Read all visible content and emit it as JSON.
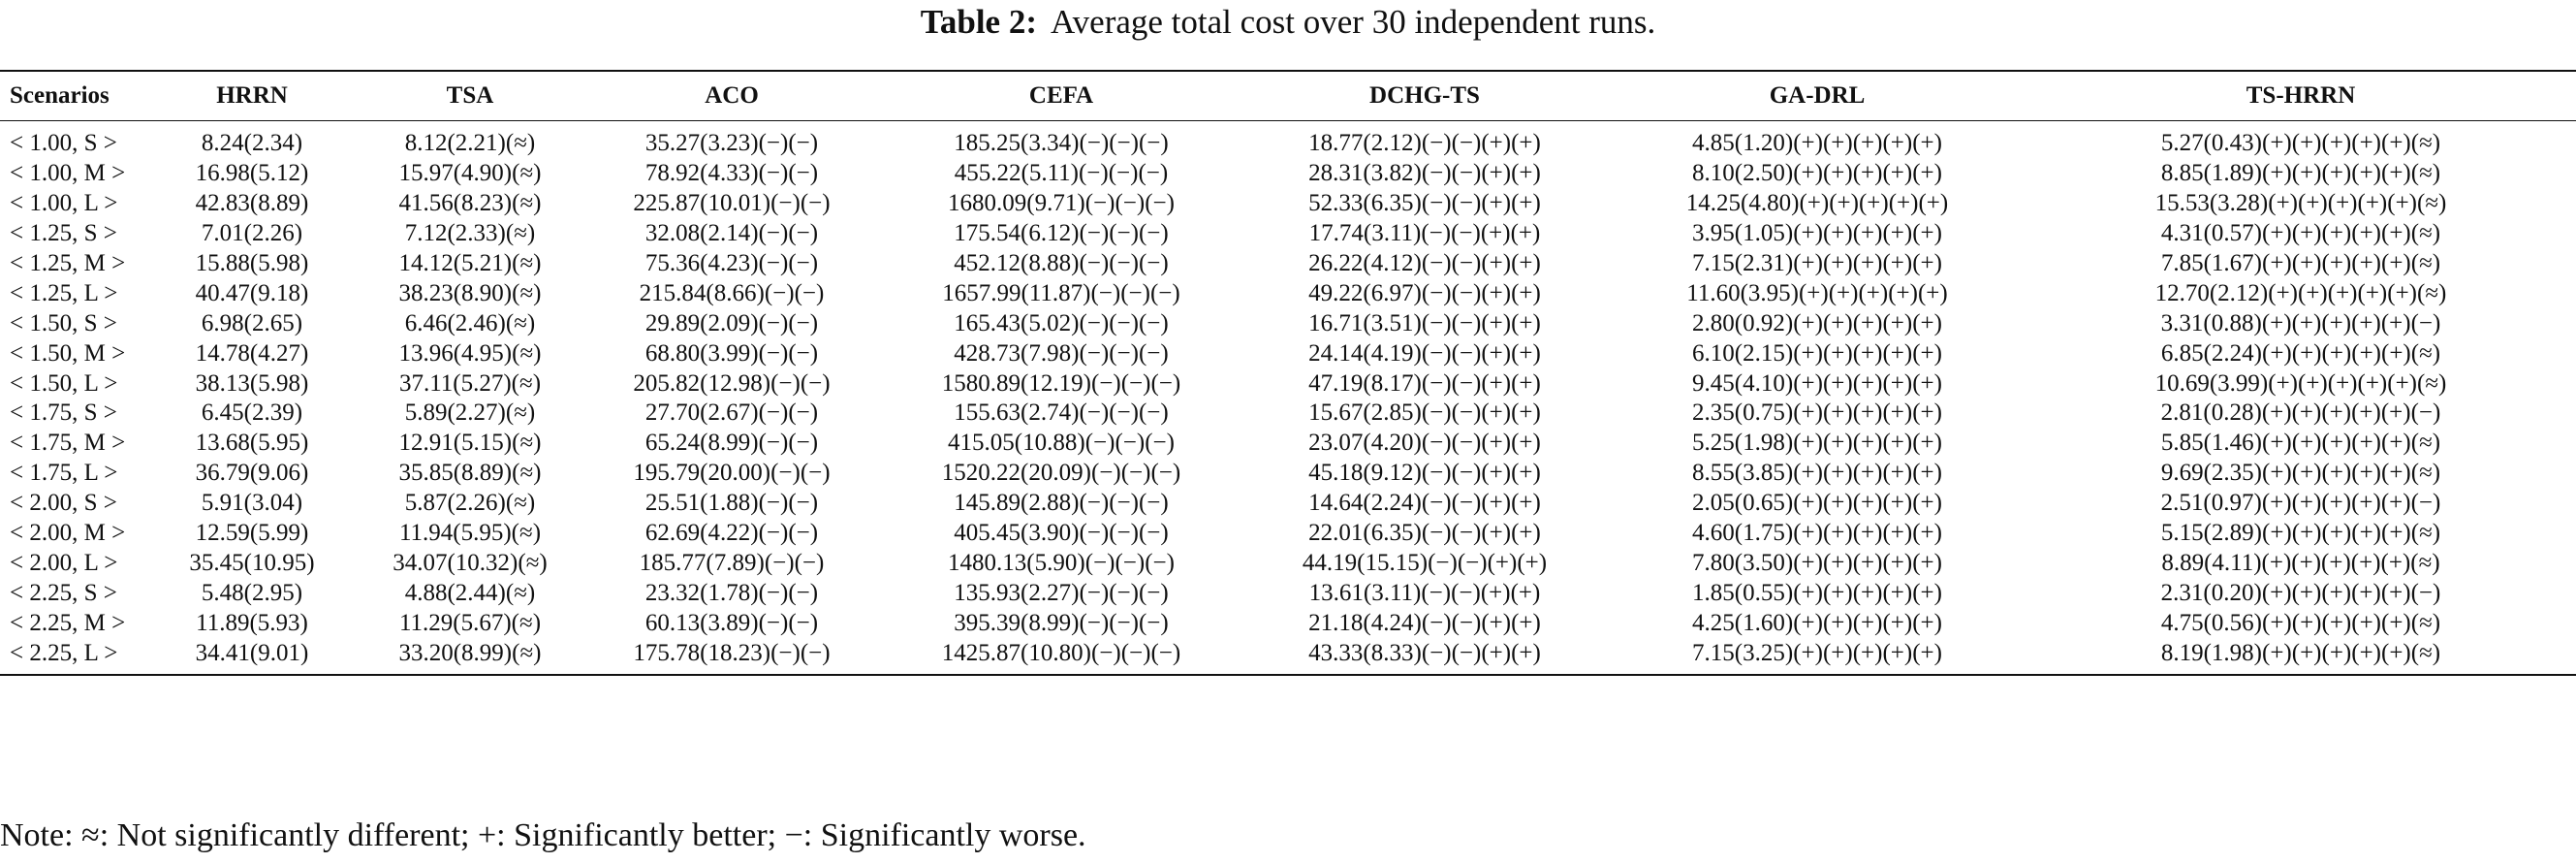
{
  "caption": {
    "label": "Table 2:",
    "text": "Average total cost over 30 independent runs."
  },
  "table": {
    "headers": [
      "Scenarios",
      "HRRN",
      "TSA",
      "ACO",
      "CEFA",
      "DCHG-TS",
      "GA-DRL",
      "TS-HRRN"
    ],
    "rows": [
      [
        "< 1.00, S >",
        "8.24(2.34)",
        "8.12(2.21)(≈)",
        "35.27(3.23)(−)(−)",
        "185.25(3.34)(−)(−)(−)",
        "18.77(2.12)(−)(−)(+)(+)",
        "4.85(1.20)(+)(+)(+)(+)(+)",
        "5.27(0.43)(+)(+)(+)(+)(+)(≈)"
      ],
      [
        "< 1.00, M >",
        "16.98(5.12)",
        "15.97(4.90)(≈)",
        "78.92(4.33)(−)(−)",
        "455.22(5.11)(−)(−)(−)",
        "28.31(3.82)(−)(−)(+)(+)",
        "8.10(2.50)(+)(+)(+)(+)(+)",
        "8.85(1.89)(+)(+)(+)(+)(+)(≈)"
      ],
      [
        "< 1.00, L >",
        "42.83(8.89)",
        "41.56(8.23)(≈)",
        "225.87(10.01)(−)(−)",
        "1680.09(9.71)(−)(−)(−)",
        "52.33(6.35)(−)(−)(+)(+)",
        "14.25(4.80)(+)(+)(+)(+)(+)",
        "15.53(3.28)(+)(+)(+)(+)(+)(≈)"
      ],
      [
        "< 1.25, S >",
        "7.01(2.26)",
        "7.12(2.33)(≈)",
        "32.08(2.14)(−)(−)",
        "175.54(6.12)(−)(−)(−)",
        "17.74(3.11)(−)(−)(+)(+)",
        "3.95(1.05)(+)(+)(+)(+)(+)",
        "4.31(0.57)(+)(+)(+)(+)(+)(≈)"
      ],
      [
        "< 1.25, M >",
        "15.88(5.98)",
        "14.12(5.21)(≈)",
        "75.36(4.23)(−)(−)",
        "452.12(8.88)(−)(−)(−)",
        "26.22(4.12)(−)(−)(+)(+)",
        "7.15(2.31)(+)(+)(+)(+)(+)",
        "7.85(1.67)(+)(+)(+)(+)(+)(≈)"
      ],
      [
        "< 1.25, L >",
        "40.47(9.18)",
        "38.23(8.90)(≈)",
        "215.84(8.66)(−)(−)",
        "1657.99(11.87)(−)(−)(−)",
        "49.22(6.97)(−)(−)(+)(+)",
        "11.60(3.95)(+)(+)(+)(+)(+)",
        "12.70(2.12)(+)(+)(+)(+)(+)(≈)"
      ],
      [
        "< 1.50, S >",
        "6.98(2.65)",
        "6.46(2.46)(≈)",
        "29.89(2.09)(−)(−)",
        "165.43(5.02)(−)(−)(−)",
        "16.71(3.51)(−)(−)(+)(+)",
        "2.80(0.92)(+)(+)(+)(+)(+)",
        "3.31(0.88)(+)(+)(+)(+)(+)(−)"
      ],
      [
        "< 1.50, M >",
        "14.78(4.27)",
        "13.96(4.95)(≈)",
        "68.80(3.99)(−)(−)",
        "428.73(7.98)(−)(−)(−)",
        "24.14(4.19)(−)(−)(+)(+)",
        "6.10(2.15)(+)(+)(+)(+)(+)",
        "6.85(2.24)(+)(+)(+)(+)(+)(≈)"
      ],
      [
        "< 1.50, L >",
        "38.13(5.98)",
        "37.11(5.27)(≈)",
        "205.82(12.98)(−)(−)",
        "1580.89(12.19)(−)(−)(−)",
        "47.19(8.17)(−)(−)(+)(+)",
        "9.45(4.10)(+)(+)(+)(+)(+)",
        "10.69(3.99)(+)(+)(+)(+)(+)(≈)"
      ],
      [
        "< 1.75, S >",
        "6.45(2.39)",
        "5.89(2.27)(≈)",
        "27.70(2.67)(−)(−)",
        "155.63(2.74)(−)(−)(−)",
        "15.67(2.85)(−)(−)(+)(+)",
        "2.35(0.75)(+)(+)(+)(+)(+)",
        "2.81(0.28)(+)(+)(+)(+)(+)(−)"
      ],
      [
        "< 1.75, M >",
        "13.68(5.95)",
        "12.91(5.15)(≈)",
        "65.24(8.99)(−)(−)",
        "415.05(10.88)(−)(−)(−)",
        "23.07(4.20)(−)(−)(+)(+)",
        "5.25(1.98)(+)(+)(+)(+)(+)",
        "5.85(1.46)(+)(+)(+)(+)(+)(≈)"
      ],
      [
        "< 1.75, L >",
        "36.79(9.06)",
        "35.85(8.89)(≈)",
        "195.79(20.00)(−)(−)",
        "1520.22(20.09)(−)(−)(−)",
        "45.18(9.12)(−)(−)(+)(+)",
        "8.55(3.85)(+)(+)(+)(+)(+)",
        "9.69(2.35)(+)(+)(+)(+)(+)(≈)"
      ],
      [
        "< 2.00, S >",
        "5.91(3.04)",
        "5.87(2.26)(≈)",
        "25.51(1.88)(−)(−)",
        "145.89(2.88)(−)(−)(−)",
        "14.64(2.24)(−)(−)(+)(+)",
        "2.05(0.65)(+)(+)(+)(+)(+)",
        "2.51(0.97)(+)(+)(+)(+)(+)(−)"
      ],
      [
        "< 2.00, M >",
        "12.59(5.99)",
        "11.94(5.95)(≈)",
        "62.69(4.22)(−)(−)",
        "405.45(3.90)(−)(−)(−)",
        "22.01(6.35)(−)(−)(+)(+)",
        "4.60(1.75)(+)(+)(+)(+)(+)",
        "5.15(2.89)(+)(+)(+)(+)(+)(≈)"
      ],
      [
        "< 2.00, L >",
        "35.45(10.95)",
        "34.07(10.32)(≈)",
        "185.77(7.89)(−)(−)",
        "1480.13(5.90)(−)(−)(−)",
        "44.19(15.15)(−)(−)(+)(+)",
        "7.80(3.50)(+)(+)(+)(+)(+)",
        "8.89(4.11)(+)(+)(+)(+)(+)(≈)"
      ],
      [
        "< 2.25, S >",
        "5.48(2.95)",
        "4.88(2.44)(≈)",
        "23.32(1.78)(−)(−)",
        "135.93(2.27)(−)(−)(−)",
        "13.61(3.11)(−)(−)(+)(+)",
        "1.85(0.55)(+)(+)(+)(+)(+)",
        "2.31(0.20)(+)(+)(+)(+)(+)(−)"
      ],
      [
        "< 2.25, M >",
        "11.89(5.93)",
        "11.29(5.67)(≈)",
        "60.13(3.89)(−)(−)",
        "395.39(8.99)(−)(−)(−)",
        "21.18(4.24)(−)(−)(+)(+)",
        "4.25(1.60)(+)(+)(+)(+)(+)",
        "4.75(0.56)(+)(+)(+)(+)(+)(≈)"
      ],
      [
        "< 2.25, L >",
        "34.41(9.01)",
        "33.20(8.99)(≈)",
        "175.78(18.23)(−)(−)",
        "1425.87(10.80)(−)(−)(−)",
        "43.33(8.33)(−)(−)(+)(+)",
        "7.15(3.25)(+)(+)(+)(+)(+)",
        "8.19(1.98)(+)(+)(+)(+)(+)(≈)"
      ]
    ]
  },
  "note": "Note: ≈: Not significantly different; +: Significantly better; −: Significantly worse."
}
